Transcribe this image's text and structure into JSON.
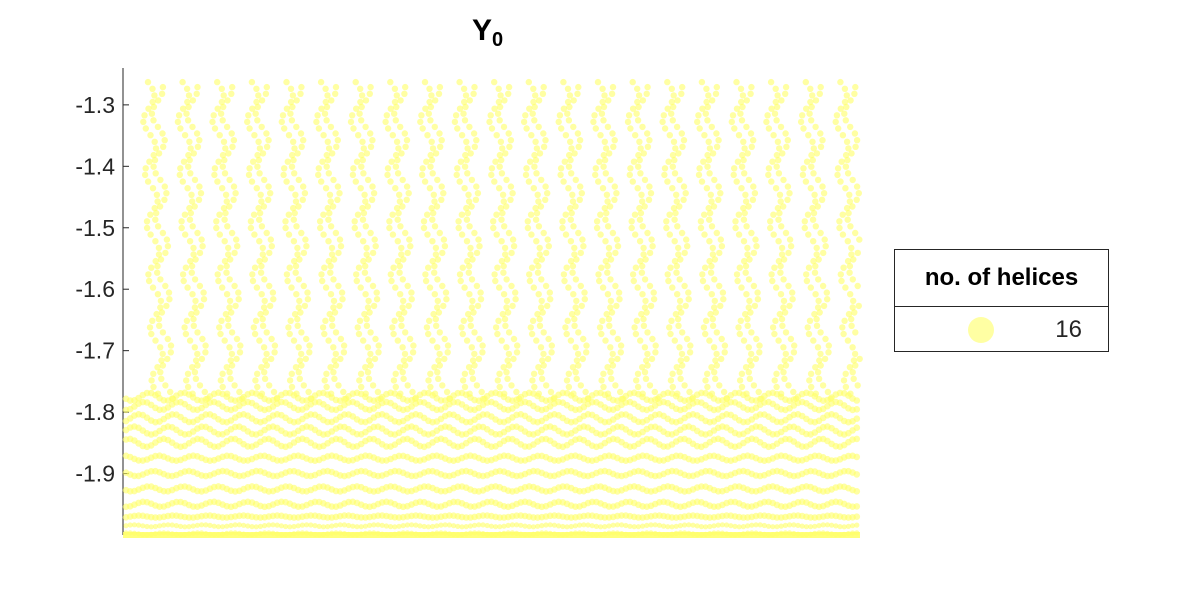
{
  "chart_data": {
    "type": "scatter",
    "title": "Y",
    "title_subscript": "0",
    "xlabel": "",
    "ylabel": "",
    "ylim": [
      -2.0,
      -1.24
    ],
    "yticks": [
      -1.3,
      -1.4,
      -1.5,
      -1.6,
      -1.7,
      -1.8,
      -1.9
    ],
    "ytick_labels": [
      "-1.3",
      "-1.4",
      "-1.5",
      "-1.6",
      "-1.7",
      "-1.8",
      "-1.9"
    ],
    "x_axis_visible": false,
    "grid": false,
    "marker_color": "#ffff66",
    "marker_alpha": 0.6,
    "legend": {
      "title": "no. of helices",
      "entries": [
        {
          "label": "16",
          "color": "#ffff66"
        }
      ],
      "placement": "outside-right"
    },
    "series": [
      {
        "label": "16",
        "helix_count": 16,
        "bottom_value": -2.0,
        "top_value": -1.25
      }
    ]
  }
}
